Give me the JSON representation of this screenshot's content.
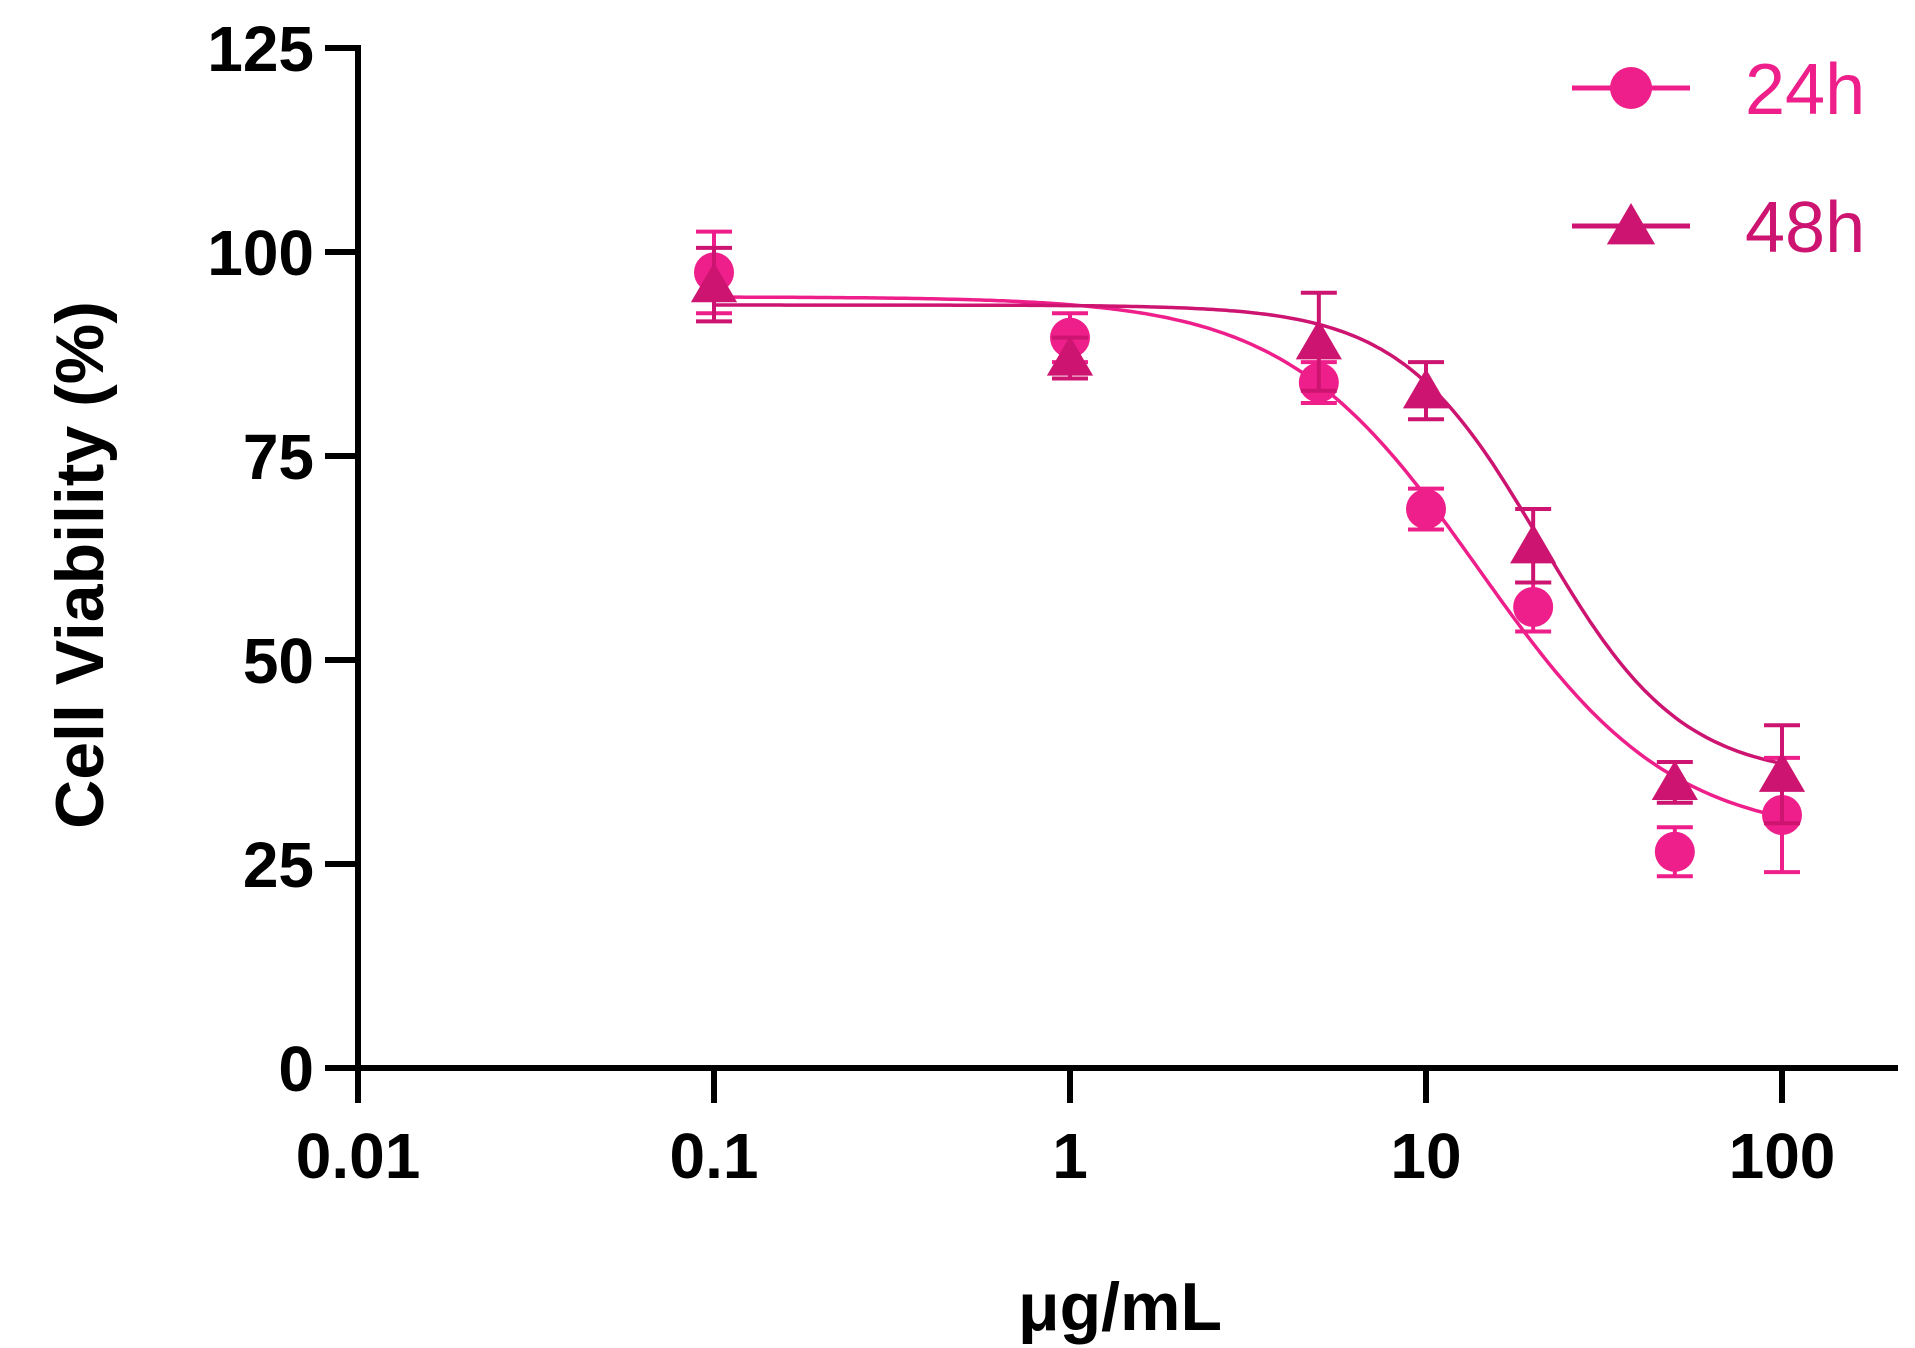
{
  "chart_data": {
    "type": "scatter",
    "title": "",
    "xlabel": "μg/mL",
    "ylabel": "Cell Viability (%)",
    "xscale": "log",
    "xlim": [
      0.01,
      200
    ],
    "ylim": [
      0,
      125
    ],
    "xticks": [
      0.01,
      0.1,
      1,
      10,
      100
    ],
    "xtick_labels": [
      "0.01",
      "0.1",
      "1",
      "10",
      "100"
    ],
    "yticks": [
      0,
      25,
      50,
      75,
      100,
      125
    ],
    "ytick_labels": [
      "0",
      "25",
      "50",
      "75",
      "100",
      "125"
    ],
    "grid": false,
    "legend_position": "top-right",
    "series": [
      {
        "name": "24h",
        "marker": "circle",
        "color": "#ee1f8a",
        "x": [
          0.1,
          1,
          5,
          10,
          20,
          50,
          100
        ],
        "y": [
          97.5,
          89.5,
          84,
          68.5,
          56.5,
          26.5,
          31
        ],
        "error": [
          5,
          3,
          2.5,
          2.5,
          3,
          3,
          7
        ],
        "fit": {
          "bottom": 28,
          "top": 94.5,
          "ec50": 14,
          "hill": 1.6
        }
      },
      {
        "name": "48h",
        "marker": "triangle",
        "color": "#cc1470",
        "x": [
          0.1,
          1,
          5,
          10,
          20,
          50,
          100
        ],
        "y": [
          96,
          87,
          89,
          83,
          64,
          35,
          36
        ],
        "error": [
          4.5,
          2.5,
          6,
          3.5,
          4.5,
          2.5,
          6
        ],
        "fit": {
          "bottom": 35.5,
          "top": 93.5,
          "ec50": 21,
          "hill": 2.2
        }
      }
    ]
  }
}
